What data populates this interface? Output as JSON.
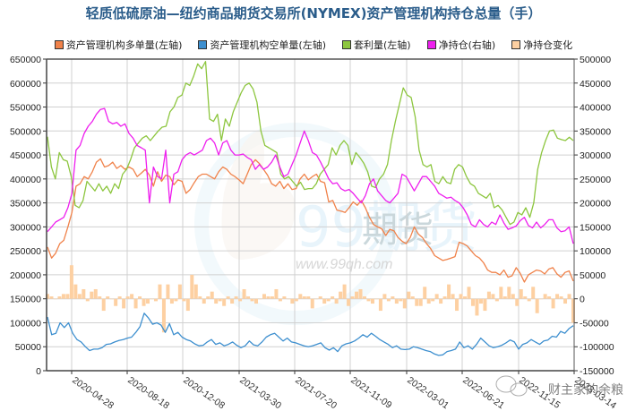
{
  "title": "轻质低硫原油—纽约商品期货交易所(NYMEX)资产管理机构持仓总量（手）",
  "legend": [
    {
      "label": "资产管理机构多单量(左轴)",
      "color": "#f0824a"
    },
    {
      "label": "资产管理机构空单量(左轴)",
      "color": "#3d8fcf"
    },
    {
      "label": "套利量(左轴)",
      "color": "#8dc63f"
    },
    {
      "label": "净持仓(右轴)",
      "color": "#ee1fee"
    },
    {
      "label": "净持仓变化",
      "color": "#fdd0a2"
    }
  ],
  "watermark": {
    "brand": "99期货",
    "url": "www.99qh.com",
    "social": "财主家的余粮"
  },
  "chart_data": {
    "type": "line",
    "title": "轻质低硫原油—纽约商品期货交易所(NYMEX)资产管理机构持仓总量（手）",
    "xlabel": "",
    "ylabel_left": "",
    "ylabel_right": "",
    "ylim_left": [
      0,
      650000
    ],
    "ylim_right": [
      -150000,
      500000
    ],
    "left_ticks": [
      "0",
      "50000",
      "100000",
      "150000",
      "200000",
      "250000",
      "300000",
      "350000",
      "400000",
      "450000",
      "500000",
      "550000",
      "600000",
      "650000"
    ],
    "right_ticks": [
      "-150000",
      "-100000",
      "-50000",
      "0",
      "50000",
      "100000",
      "150000",
      "200000",
      "250000",
      "300000",
      "350000",
      "400000",
      "450000",
      "500000"
    ],
    "x_tick_labels": [
      "2020-04-28",
      "2020-08-18",
      "2020-12-08",
      "2021-03-30",
      "2021-07-20",
      "2021-11-09",
      "2022-03-01",
      "2022-06-21",
      "2022-11-15",
      "2023-03-14"
    ],
    "grid": true,
    "legend_position": "top",
    "series": [
      {
        "name": "资产管理机构多单量(左轴)",
        "axis": "left",
        "type": "line",
        "color": "#f0824a",
        "values": [
          258000,
          235000,
          245000,
          265000,
          272000,
          300000,
          330000,
          385000,
          390000,
          405000,
          400000,
          415000,
          435000,
          442000,
          425000,
          428000,
          435000,
          422000,
          428000,
          420000,
          425000,
          420000,
          405000,
          412000,
          420000,
          408000,
          385000,
          415000,
          395000,
          408000,
          405000,
          388000,
          398000,
          395000,
          370000,
          378000,
          392000,
          405000,
          410000,
          410000,
          405000,
          400000,
          415000,
          425000,
          420000,
          410000,
          405000,
          398000,
          390000,
          410000,
          430000,
          440000,
          432000,
          420000,
          408000,
          390000,
          385000,
          395000,
          380000,
          390000,
          378000,
          380000,
          400000,
          410000,
          398000,
          405000,
          410000,
          395000,
          392000,
          352000,
          355000,
          335000,
          333000,
          330000,
          340000,
          352000,
          345000,
          355000,
          340000,
          320000,
          305000,
          300000,
          296000,
          282000,
          295000,
          292000,
          278000,
          270000,
          265000,
          278000,
          300000,
          285000,
          278000,
          265000,
          255000,
          240000,
          235000,
          230000,
          232000,
          235000,
          238000,
          268000,
          265000,
          260000,
          250000,
          240000,
          235000,
          225000,
          210000,
          205000,
          205000,
          200000,
          210000,
          195000,
          198000,
          215000,
          203000,
          185000,
          200000,
          205000,
          210000,
          208000,
          202000,
          212000,
          215000,
          202000,
          195000,
          205000,
          208000,
          187000
        ]
      },
      {
        "name": "资产管理机构空单量(左轴)",
        "axis": "left",
        "type": "line",
        "color": "#3d8fcf",
        "values": [
          112000,
          75000,
          78000,
          100000,
          90000,
          100000,
          78000,
          65000,
          60000,
          50000,
          42000,
          45000,
          45000,
          48000,
          55000,
          56000,
          60000,
          63000,
          65000,
          68000,
          70000,
          80000,
          92000,
          120000,
          110000,
          97000,
          100000,
          95000,
          80000,
          98000,
          75000,
          80000,
          70000,
          65000,
          62000,
          56000,
          52000,
          53000,
          60000,
          65000,
          55000,
          58000,
          52000,
          55000,
          60000,
          53000,
          48000,
          52000,
          62000,
          54000,
          52000,
          60000,
          70000,
          75000,
          78000,
          70000,
          62000,
          68000,
          60000,
          58000,
          55000,
          52000,
          50000,
          52000,
          55000,
          58000,
          48000,
          43000,
          48000,
          40000,
          52000,
          56000,
          58000,
          62000,
          68000,
          75000,
          70000,
          78000,
          72000,
          65000,
          60000,
          55000,
          48000,
          52000,
          45000,
          44000,
          45000,
          50000,
          48000,
          45000,
          42000,
          40000,
          35000,
          32000,
          33000,
          40000,
          42000,
          45000,
          60000,
          48000,
          52000,
          45000,
          55000,
          68000,
          60000,
          52000,
          48000,
          50000,
          53000,
          58000,
          64000,
          60000,
          45000,
          55000,
          58000,
          65000,
          60000,
          55000,
          62000,
          64000,
          72000,
          70000,
          82000,
          78000,
          88000,
          94000
        ]
      },
      {
        "name": "套利量(左轴)",
        "axis": "left",
        "type": "line",
        "color": "#8dc63f",
        "values": [
          488000,
          425000,
          400000,
          455000,
          440000,
          437000,
          405000,
          345000,
          340000,
          355000,
          395000,
          385000,
          375000,
          390000,
          375000,
          385000,
          370000,
          390000,
          380000,
          410000,
          420000,
          440000,
          465000,
          475000,
          485000,
          490000,
          480000,
          490000,
          500000,
          508000,
          510000,
          540000,
          550000,
          570000,
          575000,
          600000,
          595000,
          615000,
          640000,
          630000,
          645000,
          525000,
          520000,
          535000,
          480000,
          525000,
          510000,
          540000,
          560000,
          580000,
          595000,
          600000,
          588000,
          560000,
          500000,
          470000,
          465000,
          460000,
          455000,
          410000,
          400000,
          405000,
          395000,
          385000,
          393000,
          378000,
          380000,
          380000,
          390000,
          410000,
          420000,
          430000,
          465000,
          450000,
          470000,
          480000,
          470000,
          430000,
          455000,
          445000,
          433000,
          415000,
          385000,
          382000,
          400000,
          410000,
          430000,
          480000,
          520000,
          555000,
          590000,
          575000,
          570000,
          530000,
          460000,
          430000,
          425000,
          430000,
          395000,
          390000,
          405000,
          393000,
          390000,
          420000,
          430000,
          425000,
          405000,
          390000,
          385000,
          370000,
          365000,
          360000,
          370000,
          340000,
          345000,
          335000,
          320000,
          305000,
          310000,
          330000,
          325000,
          340000,
          320000,
          350000,
          420000,
          455000,
          480000,
          500000,
          502000,
          485000,
          482000,
          480000,
          487000,
          480000
        ]
      },
      {
        "name": "净持仓(右轴)",
        "axis": "right",
        "type": "line",
        "color": "#ee1fee",
        "values": [
          140000,
          150000,
          160000,
          165000,
          170000,
          190000,
          220000,
          310000,
          320000,
          345000,
          360000,
          370000,
          385000,
          395000,
          397000,
          370000,
          365000,
          368000,
          360000,
          365000,
          345000,
          335000,
          320000,
          315000,
          310000,
          200000,
          275000,
          255000,
          250000,
          310000,
          200000,
          260000,
          265000,
          290000,
          300000,
          305000,
          300000,
          305000,
          310000,
          330000,
          335000,
          325000,
          300000,
          325000,
          330000,
          310000,
          300000,
          300000,
          302000,
          295000,
          290000,
          270000,
          280000,
          270000,
          275000,
          285000,
          300000,
          275000,
          255000,
          260000,
          280000,
          300000,
          325000,
          350000,
          330000,
          305000,
          300000,
          285000,
          268000,
          250000,
          240000,
          242000,
          230000,
          225000,
          228000,
          220000,
          210000,
          200000,
          215000,
          240000,
          250000,
          225000,
          215000,
          205000,
          200000,
          210000,
          220000,
          260000,
          255000,
          240000,
          225000,
          240000,
          255000,
          255000,
          245000,
          235000,
          220000,
          215000,
          210000,
          212000,
          205000,
          200000,
          190000,
          175000,
          155000,
          150000,
          165000,
          155000,
          150000,
          160000,
          155000,
          175000,
          158000,
          145000,
          148000,
          152000,
          163000,
          170000,
          153000,
          148000,
          160000,
          148000,
          155000,
          165000,
          165000,
          148000,
          140000,
          142000,
          150000,
          115000
        ]
      },
      {
        "name": "净持仓变化",
        "axis": "right",
        "type": "bar",
        "color": "#fdd0a2",
        "values": [
          10000,
          5000,
          0,
          5000,
          10000,
          10000,
          70000,
          30000,
          10000,
          20000,
          -5000,
          15000,
          20000,
          5000,
          -25000,
          5000,
          0,
          -15000,
          5000,
          -20000,
          5000,
          10000,
          -20000,
          5000,
          -15000,
          -10000,
          0,
          -5000,
          30000,
          -70000,
          30000,
          -10000,
          -5000,
          30000,
          -5000,
          -25000,
          50000,
          30000,
          5000,
          -10000,
          5000,
          15000,
          -10000,
          -5000,
          -15000,
          5000,
          -10000,
          5000,
          -5000,
          20000,
          5000,
          -5000,
          -10000,
          0,
          10000,
          5000,
          5000,
          20000,
          -5000,
          5000,
          0,
          -10000,
          -5000,
          10000,
          5000,
          5000,
          -20000,
          0,
          5000,
          -10000,
          -5000,
          5000,
          -10000,
          15000,
          30000,
          -15000,
          5000,
          15000,
          20000,
          5000,
          -5000,
          -10000,
          0,
          -25000,
          10000,
          -5000,
          5000,
          -10000,
          -5000,
          -20000,
          15000,
          5000,
          -15000,
          -15000,
          25000,
          -10000,
          -5000,
          10000,
          -10000,
          5000,
          30000,
          10000,
          -25000,
          10000,
          5000,
          25000,
          -15000,
          -35000,
          -10000,
          -25000,
          15000,
          10000,
          -5000,
          25000,
          5000,
          25000,
          10000,
          -15000,
          20000,
          5000,
          -5000,
          25000,
          -30000,
          0,
          10000,
          5000,
          -20000,
          10000,
          5000,
          -10000,
          10000,
          -50000
        ]
      }
    ]
  }
}
